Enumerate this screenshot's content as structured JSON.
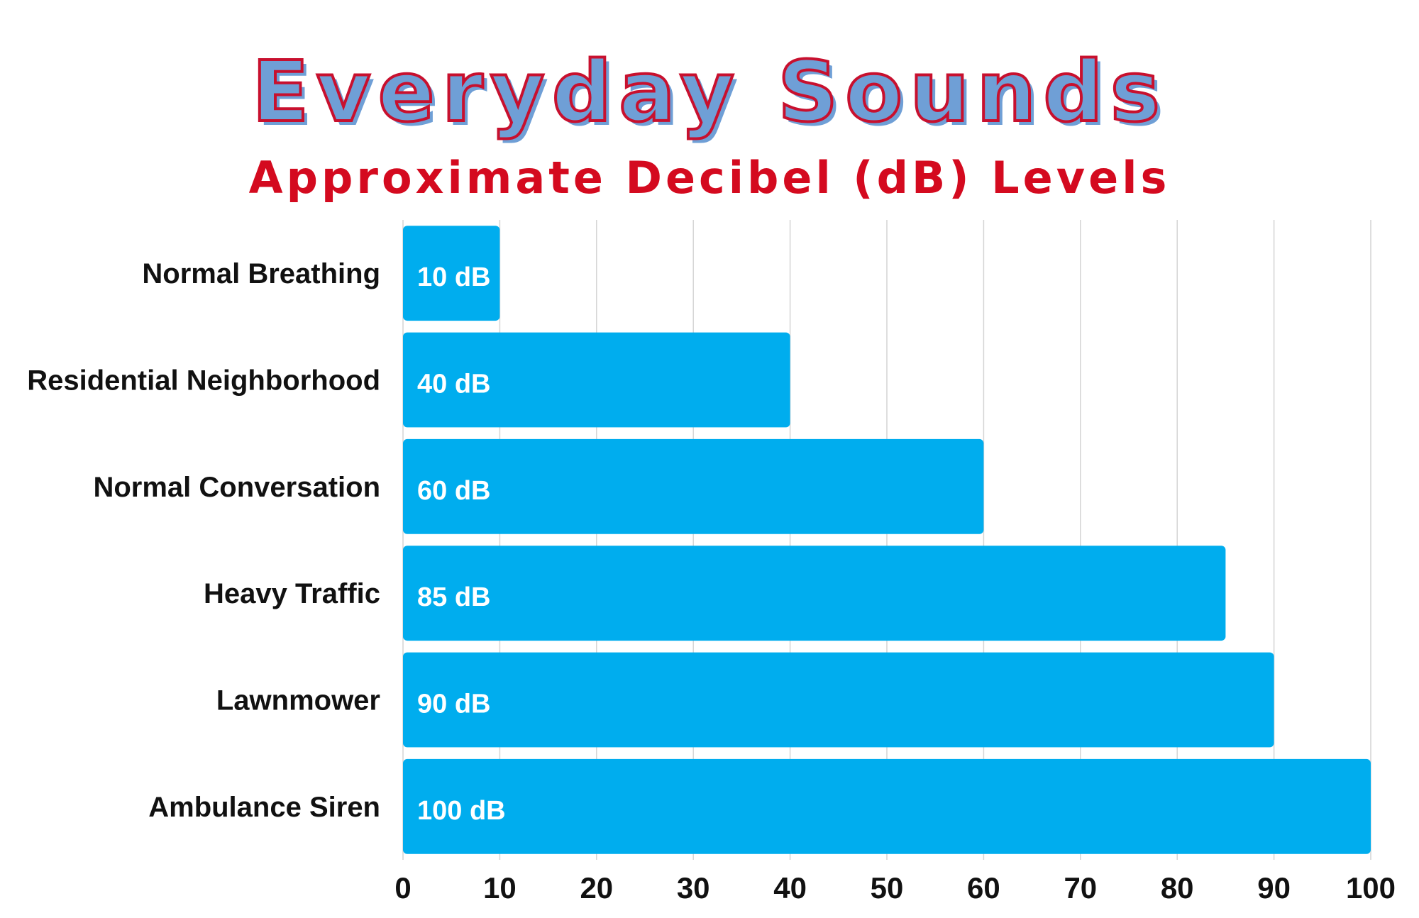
{
  "chart_data": {
    "type": "bar",
    "orientation": "horizontal",
    "title": "Everyday Sounds",
    "subtitle": "Approximate Decibel (dB) Levels",
    "categories": [
      "Normal Breathing",
      "Residential Neighborhood",
      "Normal Conversation",
      "Heavy Traffic",
      "Lawnmower",
      "Ambulance Siren"
    ],
    "values": [
      10,
      40,
      60,
      85,
      90,
      100
    ],
    "data_labels": [
      "10 dB",
      "40 dB",
      "60 dB",
      "85 dB",
      "90 dB",
      "100 dB"
    ],
    "xlim": [
      0,
      100
    ],
    "xticks": [
      "0",
      "10",
      "20",
      "30",
      "40",
      "50",
      "60",
      "70",
      "80",
      "90",
      "100"
    ],
    "grid": "vertical",
    "bar_color": "#00adee"
  }
}
